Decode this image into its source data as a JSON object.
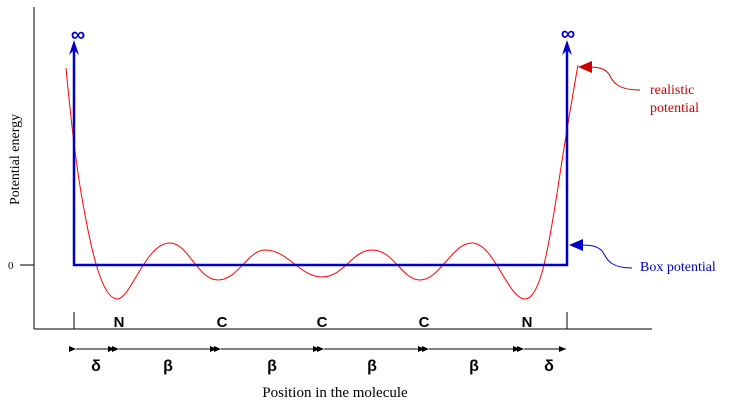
{
  "axes": {
    "ylabel": "Potential energy",
    "xlabel": "Position in the molecule",
    "zero_tick": "0"
  },
  "infinity_symbol": "∞",
  "annotations": {
    "realistic_line1": "realistic",
    "realistic_line2": "potential",
    "box": "Box potential"
  },
  "atoms": [
    "N",
    "C",
    "C",
    "C",
    "N"
  ],
  "segments": [
    "δ",
    "β",
    "β",
    "β",
    "β",
    "δ"
  ],
  "colors": {
    "box": "#0000cc",
    "realistic": "#ff0000",
    "realistic_arrow": "#cc0000",
    "axis": "#000000"
  }
}
